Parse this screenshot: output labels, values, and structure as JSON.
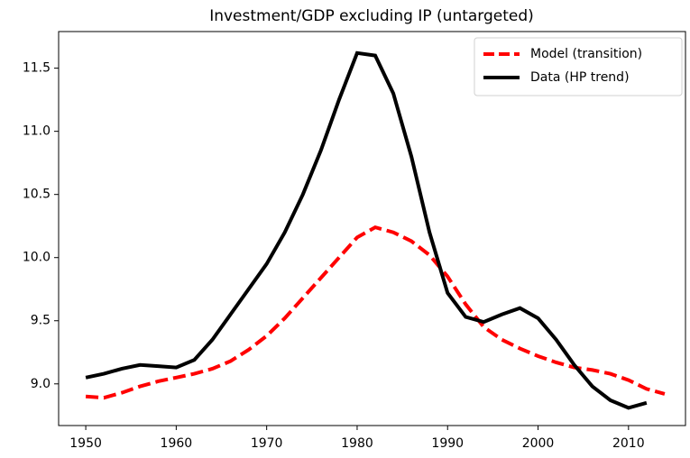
{
  "chart_data": {
    "type": "line",
    "title": "Investment/GDP excluding IP (untargeted)",
    "x": [
      1950,
      1952,
      1954,
      1956,
      1958,
      1960,
      1962,
      1964,
      1966,
      1968,
      1970,
      1972,
      1974,
      1976,
      1978,
      1980,
      1982,
      1984,
      1986,
      1988,
      1990,
      1992,
      1994,
      1996,
      1998,
      2000,
      2002,
      2004,
      2006,
      2008,
      2010,
      2012,
      2014
    ],
    "series": [
      {
        "name": "Model (transition)",
        "color": "#ff0000",
        "linestyle": "dashed",
        "values": [
          8.9,
          8.89,
          8.93,
          8.98,
          9.02,
          9.05,
          9.08,
          9.12,
          9.18,
          9.27,
          9.38,
          9.52,
          9.68,
          9.84,
          10.0,
          10.16,
          10.24,
          10.2,
          10.13,
          10.02,
          9.85,
          9.63,
          9.45,
          9.35,
          9.28,
          9.22,
          9.17,
          9.13,
          9.11,
          9.08,
          9.03,
          8.96,
          8.92
        ]
      },
      {
        "name": "Data (HP trend)",
        "color": "#000000",
        "linestyle": "solid",
        "values": [
          9.05,
          9.08,
          9.12,
          9.15,
          9.14,
          9.13,
          9.19,
          9.35,
          9.55,
          9.75,
          9.95,
          10.2,
          10.5,
          10.85,
          11.25,
          11.62,
          11.6,
          11.3,
          10.8,
          10.2,
          9.72,
          9.53,
          9.49,
          9.55,
          9.6,
          9.52,
          9.35,
          9.15,
          8.98,
          8.87,
          8.81,
          8.85,
          null
        ]
      }
    ],
    "xlim": [
      1947,
      2016.3
    ],
    "xticks": [
      1950,
      1960,
      1970,
      1980,
      1990,
      2000,
      2010
    ],
    "ylim": [
      8.67,
      11.79
    ],
    "yticks": [
      {
        "value": 9.0,
        "label": "9.0"
      },
      9.5,
      {
        "value": 10.0,
        "label": "10.0"
      },
      10.5,
      {
        "value": 11.0,
        "label": "11.0"
      },
      11.5
    ],
    "grid": false,
    "legend": "upper right"
  }
}
